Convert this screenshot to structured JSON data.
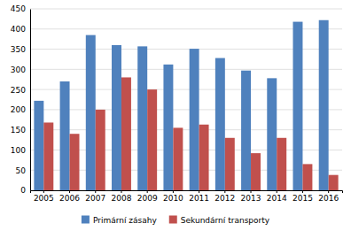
{
  "chart_data": {
    "type": "bar",
    "categories": [
      "2005",
      "2006",
      "2007",
      "2008",
      "2009",
      "2010",
      "2011",
      "2012",
      "2013",
      "2014",
      "2015",
      "2016"
    ],
    "series": [
      {
        "name": "Primární zásahy",
        "color": "#4F81BD",
        "values": [
          222,
          270,
          385,
          360,
          357,
          312,
          351,
          328,
          297,
          278,
          418,
          422
        ]
      },
      {
        "name": "Sekundární transporty",
        "color": "#C0504D",
        "values": [
          168,
          140,
          200,
          280,
          250,
          155,
          163,
          130,
          92,
          130,
          65,
          38
        ]
      }
    ],
    "ylim": [
      0,
      450
    ],
    "yticks": [
      0,
      50,
      100,
      150,
      200,
      250,
      300,
      350,
      400,
      450
    ],
    "grid": true,
    "legend": "bottom"
  }
}
